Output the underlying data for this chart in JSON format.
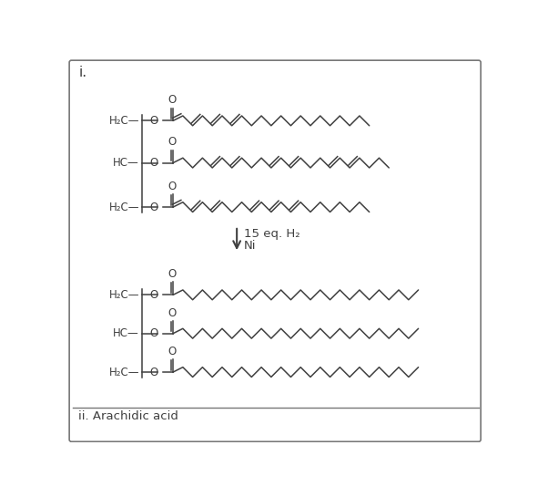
{
  "title_i": "i.",
  "title_ii": "ii. Arachidic acid",
  "reaction_label": "15 eq. H₂",
  "catalyst_label": "Ni",
  "background_color": "#ffffff",
  "border_color": "#777777",
  "line_color": "#404040",
  "line_width": 1.1,
  "fig_width": 5.91,
  "fig_height": 5.45,
  "seg": 14,
  "amp": 7,
  "chain1_doubles": [
    0,
    2,
    4,
    6
  ],
  "chain2_doubles": [
    4,
    6,
    10,
    12,
    16,
    18
  ],
  "chain3_doubles": [
    0,
    2,
    4,
    8,
    10,
    12
  ],
  "chain1_nsegs": 20,
  "chain2_nsegs": 22,
  "chain3_nsegs": 20,
  "sat_nsegs": 25
}
